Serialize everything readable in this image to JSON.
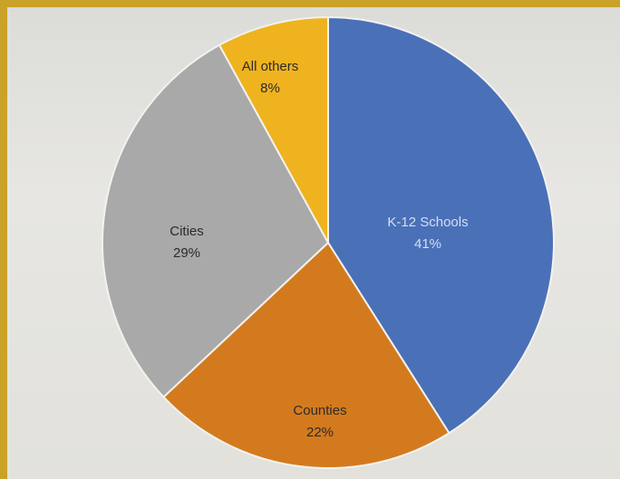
{
  "chart_data": {
    "type": "pie",
    "title": "",
    "slices": [
      {
        "label": "K-12 Schools",
        "value": 41,
        "value_label": "41%",
        "color": "#4a70b8"
      },
      {
        "label": "Counties",
        "value": 22,
        "value_label": "22%",
        "color": "#d47a1e"
      },
      {
        "label": "Cities",
        "value": 29,
        "value_label": "29%",
        "color": "#a9a9a9"
      },
      {
        "label": "All others",
        "value": 8,
        "value_label": "8%",
        "color": "#efb320"
      }
    ],
    "legend": "none"
  }
}
